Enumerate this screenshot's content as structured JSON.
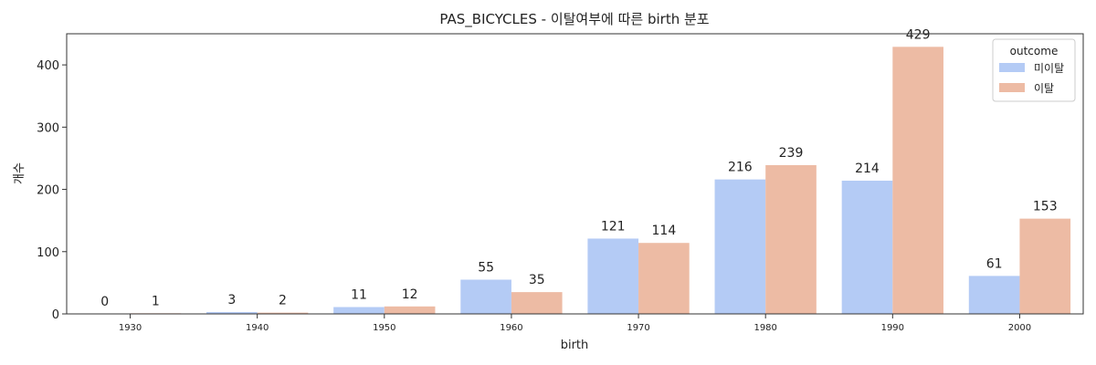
{
  "chart_data": {
    "type": "bar",
    "title": "PAS_BICYCLES - 이탈여부에 따른 birth 분포",
    "xlabel": "birth",
    "ylabel": "개수",
    "categories": [
      "1930",
      "1940",
      "1950",
      "1960",
      "1970",
      "1980",
      "1990",
      "2000"
    ],
    "series": [
      {
        "name": "미이탈",
        "color": "#b4cbf5",
        "values": [
          0,
          3,
          11,
          55,
          121,
          216,
          214,
          61
        ]
      },
      {
        "name": "이탈",
        "color": "#edbba4",
        "values": [
          1,
          2,
          12,
          35,
          114,
          239,
          429,
          153
        ]
      }
    ],
    "ylim": [
      0,
      450
    ],
    "yticks": [
      0,
      100,
      200,
      300,
      400
    ],
    "legend": {
      "title": "outcome",
      "position": "top-right"
    },
    "grid": false
  }
}
